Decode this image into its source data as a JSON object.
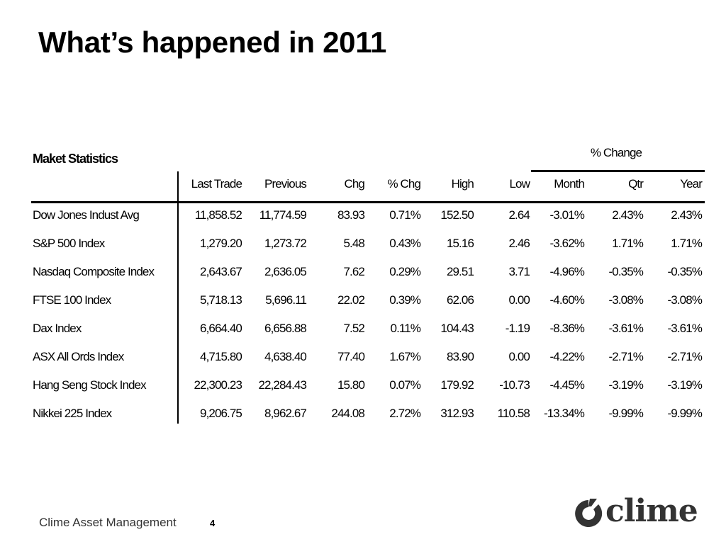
{
  "slide": {
    "title": "What’s happened in 2011"
  },
  "table": {
    "caption": "Maket Statistics",
    "group_header": "% Change",
    "columns": [
      "Last Trade",
      "Previous",
      "Chg",
      "% Chg",
      "High",
      "Low",
      "Month",
      "Qtr",
      "Year"
    ],
    "rows": [
      {
        "name": "Dow Jones Indust Avg",
        "values": [
          "11,858.52",
          "11,774.59",
          "83.93",
          "0.71%",
          "152.50",
          "2.64",
          "-3.01%",
          "2.43%",
          "2.43%"
        ]
      },
      {
        "name": "S&P 500 Index",
        "values": [
          "1,279.20",
          "1,273.72",
          "5.48",
          "0.43%",
          "15.16",
          "2.46",
          "-3.62%",
          "1.71%",
          "1.71%"
        ]
      },
      {
        "name": "Nasdaq Composite Index",
        "values": [
          "2,643.67",
          "2,636.05",
          "7.62",
          "0.29%",
          "29.51",
          "3.71",
          "-4.96%",
          "-0.35%",
          "-0.35%"
        ]
      },
      {
        "name": "FTSE 100 Index",
        "values": [
          "5,718.13",
          "5,696.11",
          "22.02",
          "0.39%",
          "62.06",
          "0.00",
          "-4.60%",
          "-3.08%",
          "-3.08%"
        ]
      },
      {
        "name": "Dax Index",
        "values": [
          "6,664.40",
          "6,656.88",
          "7.52",
          "0.11%",
          "104.43",
          "-1.19",
          "-8.36%",
          "-3.61%",
          "-3.61%"
        ]
      },
      {
        "name": "ASX All Ords Index",
        "values": [
          "4,715.80",
          "4,638.40",
          "77.40",
          "1.67%",
          "83.90",
          "0.00",
          "-4.22%",
          "-2.71%",
          "-2.71%"
        ]
      },
      {
        "name": "Hang Seng Stock Index",
        "values": [
          "22,300.23",
          "22,284.43",
          "15.80",
          "0.07%",
          "179.92",
          "-10.73",
          "-4.45%",
          "-3.19%",
          "-3.19%"
        ]
      },
      {
        "name": "Nikkei 225 Index",
        "values": [
          "9,206.75",
          "8,962.67",
          "244.08",
          "2.72%",
          "312.93",
          "110.58",
          "-13.34%",
          "-9.99%",
          "-9.99%"
        ]
      }
    ]
  },
  "footer": {
    "company": "Clime Asset Management",
    "page_number": "4"
  },
  "logo": {
    "wordmark": "clime",
    "color": "#333333"
  }
}
